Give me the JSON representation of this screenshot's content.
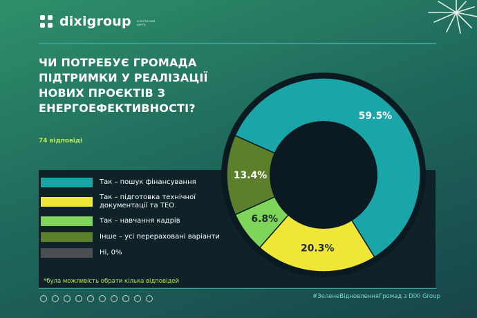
{
  "brand": {
    "name": "dixigroup",
    "subtitle": "аналітичний центр"
  },
  "question": "Чи потребує громада підтримки у реалізації нових проєктів з енергоефективності?",
  "responses": "74 відповіді",
  "note": "*була можливість обрати кілька відповідей",
  "hashtag": "#ЗеленеВідновленняГромад з DiXi Group",
  "colors": {
    "teal": "#1aa5a8",
    "yellow": "#efe638",
    "light_green": "#7fd45a",
    "olive": "#5b7f2a",
    "gray": "#4b4f52"
  },
  "chart_data": {
    "type": "pie",
    "subtype": "donut",
    "unit": "%",
    "slices": [
      {
        "label": "Так – пошук фінансування",
        "value": 59.5,
        "display": "59.5%",
        "color": "#1aa5a8"
      },
      {
        "label": "Так – підготовка технічної документації та ТЕО",
        "value": 20.3,
        "display": "20.3%",
        "color": "#efe638"
      },
      {
        "label": "Так – навчання кадрів",
        "value": 6.8,
        "display": "6.8%",
        "color": "#7fd45a"
      },
      {
        "label": "Інше – усі перераховані варіанти",
        "value": 13.4,
        "display": "13.4%",
        "color": "#5b7f2a"
      },
      {
        "label": "Ні, 0%",
        "value": 0,
        "display": "",
        "color": "#4b4f52"
      }
    ]
  }
}
